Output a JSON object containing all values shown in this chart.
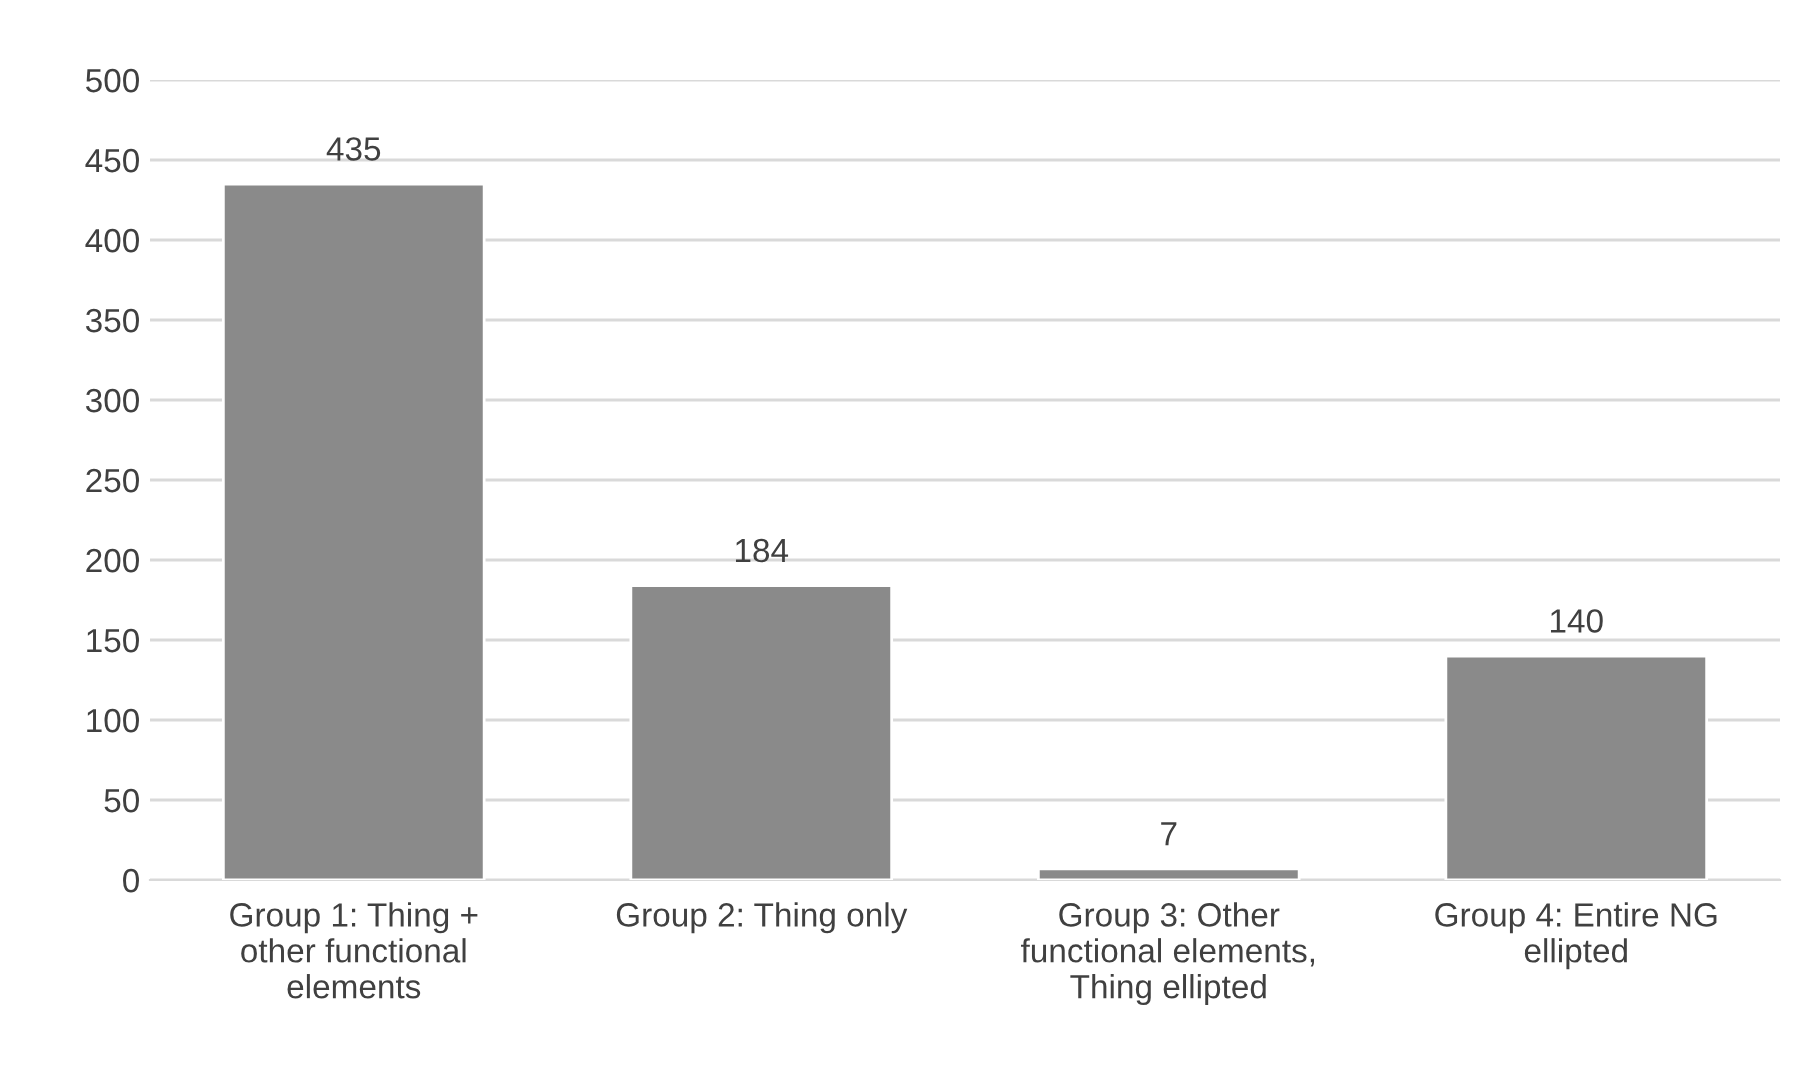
{
  "chart_data": {
    "type": "bar",
    "categories": [
      "Group 1: Thing +\nother functional\nelements",
      "Group 2: Thing only",
      "Group 3: Other\nfunctional elements,\nThing ellipted",
      "Group 4: Entire NG\nellipted"
    ],
    "values": [
      435,
      184,
      7,
      140
    ],
    "color": "#8a8a8a",
    "ylim": [
      0,
      500
    ],
    "yticks": [
      0,
      50,
      100,
      150,
      200,
      250,
      300,
      350,
      400,
      450,
      500
    ],
    "grid": "y",
    "data_labels": true
  }
}
